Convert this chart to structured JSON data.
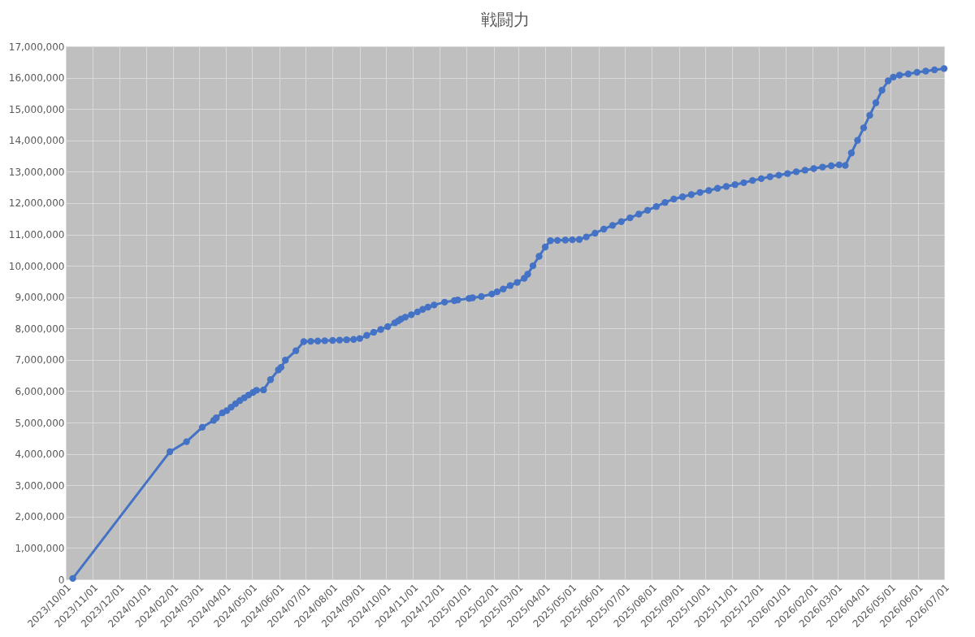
{
  "chart_data": {
    "type": "line",
    "title": "戦闘力",
    "x": [
      "2023-10-09",
      "2024-01-28",
      "2024-02-16",
      "2024-03-05",
      "2024-03-18",
      "2024-03-21",
      "2024-03-28",
      "2024-04-02",
      "2024-04-07",
      "2024-04-12",
      "2024-04-17",
      "2024-04-22",
      "2024-04-27",
      "2024-05-02",
      "2024-05-06",
      "2024-05-14",
      "2024-05-22",
      "2024-05-31",
      "2024-06-03",
      "2024-06-08",
      "2024-06-20",
      "2024-06-29",
      "2024-07-07",
      "2024-07-15",
      "2024-07-23",
      "2024-08-01",
      "2024-08-09",
      "2024-08-17",
      "2024-08-25",
      "2024-09-01",
      "2024-09-09",
      "2024-09-17",
      "2024-09-25",
      "2024-10-03",
      "2024-10-11",
      "2024-10-15",
      "2024-10-18",
      "2024-10-23",
      "2024-10-30",
      "2024-11-06",
      "2024-11-12",
      "2024-11-18",
      "2024-11-25",
      "2024-12-07",
      "2024-12-18",
      "2024-12-22",
      "2025-01-04",
      "2025-01-08",
      "2025-01-18",
      "2025-01-30",
      "2025-02-05",
      "2025-02-12",
      "2025-02-20",
      "2025-02-28",
      "2025-03-08",
      "2025-03-12",
      "2025-03-18",
      "2025-03-25",
      "2025-04-01",
      "2025-04-07",
      "2025-04-15",
      "2025-04-24",
      "2025-05-02",
      "2025-05-10",
      "2025-05-18",
      "2025-05-28",
      "2025-06-07",
      "2025-06-17",
      "2025-06-27",
      "2025-07-07",
      "2025-07-17",
      "2025-07-27",
      "2025-08-06",
      "2025-08-16",
      "2025-08-26",
      "2025-09-05",
      "2025-09-15",
      "2025-09-25",
      "2025-10-05",
      "2025-10-15",
      "2025-10-25",
      "2025-11-04",
      "2025-11-14",
      "2025-11-24",
      "2025-12-04",
      "2025-12-14",
      "2025-12-24",
      "2026-01-03",
      "2026-01-13",
      "2026-01-23",
      "2026-02-02",
      "2026-02-12",
      "2026-02-22",
      "2026-03-03",
      "2026-03-10",
      "2026-03-17",
      "2026-03-24",
      "2026-03-31",
      "2026-04-07",
      "2026-04-14",
      "2026-04-21",
      "2026-04-28",
      "2026-05-04",
      "2026-05-11",
      "2026-05-21",
      "2026-05-31",
      "2026-06-10",
      "2026-06-20",
      "2026-07-01"
    ],
    "series": [
      {
        "color": "#4472c4",
        "values": [
          30000,
          4070000,
          4390000,
          4850000,
          5070000,
          5150000,
          5310000,
          5380000,
          5490000,
          5600000,
          5700000,
          5790000,
          5880000,
          5960000,
          6030000,
          6040000,
          6370000,
          6680000,
          6760000,
          6990000,
          7290000,
          7580000,
          7590000,
          7600000,
          7610000,
          7620000,
          7630000,
          7640000,
          7650000,
          7680000,
          7780000,
          7880000,
          7970000,
          8060000,
          8180000,
          8240000,
          8300000,
          8360000,
          8440000,
          8530000,
          8610000,
          8680000,
          8750000,
          8840000,
          8890000,
          8910000,
          8960000,
          8980000,
          9020000,
          9100000,
          9170000,
          9260000,
          9370000,
          9470000,
          9600000,
          9730000,
          10000000,
          10300000,
          10600000,
          10800000,
          10810000,
          10820000,
          10830000,
          10840000,
          10920000,
          11040000,
          11170000,
          11290000,
          11410000,
          11530000,
          11650000,
          11770000,
          11890000,
          12020000,
          12130000,
          12200000,
          12270000,
          12340000,
          12400000,
          12470000,
          12530000,
          12590000,
          12650000,
          12720000,
          12780000,
          12840000,
          12890000,
          12940000,
          13000000,
          13050000,
          13100000,
          13150000,
          13190000,
          13220000,
          13200000,
          13600000,
          14000000,
          14400000,
          14800000,
          15200000,
          15600000,
          15900000,
          16020000,
          16080000,
          16120000,
          16170000,
          16210000,
          16250000,
          16290000
        ]
      }
    ],
    "xlim": [
      "2023-10-01",
      "2026-07-01"
    ],
    "xticks": [
      {
        "value": "2023-10-01",
        "label": "2023/10/01"
      },
      {
        "value": "2023-11-01",
        "label": "2023/11/01"
      },
      {
        "value": "2023-12-01",
        "label": "2023/12/01"
      },
      {
        "value": "2024-01-01",
        "label": "2024/01/01"
      },
      {
        "value": "2024-02-01",
        "label": "2024/02/01"
      },
      {
        "value": "2024-03-01",
        "label": "2024/03/01"
      },
      {
        "value": "2024-04-01",
        "label": "2024/04/01"
      },
      {
        "value": "2024-05-01",
        "label": "2024/05/01"
      },
      {
        "value": "2024-06-01",
        "label": "2024/06/01"
      },
      {
        "value": "2024-07-01",
        "label": "2024/07/01"
      },
      {
        "value": "2024-08-01",
        "label": "2024/08/01"
      },
      {
        "value": "2024-09-01",
        "label": "2024/09/01"
      },
      {
        "value": "2024-10-01",
        "label": "2024/10/01"
      },
      {
        "value": "2024-11-01",
        "label": "2024/11/01"
      },
      {
        "value": "2024-12-01",
        "label": "2024/12/01"
      },
      {
        "value": "2025-01-01",
        "label": "2025/01/01"
      },
      {
        "value": "2025-02-01",
        "label": "2025/02/01"
      },
      {
        "value": "2025-03-01",
        "label": "2025/03/01"
      },
      {
        "value": "2025-04-01",
        "label": "2025/04/01"
      },
      {
        "value": "2025-05-01",
        "label": "2025/05/01"
      },
      {
        "value": "2025-06-01",
        "label": "2025/06/01"
      },
      {
        "value": "2025-07-01",
        "label": "2025/07/01"
      },
      {
        "value": "2025-08-01",
        "label": "2025/08/01"
      },
      {
        "value": "2025-09-01",
        "label": "2025/09/01"
      },
      {
        "value": "2025-10-01",
        "label": "2025/10/01"
      },
      {
        "value": "2025-11-01",
        "label": "2025/11/01"
      },
      {
        "value": "2025-12-01",
        "label": "2025/12/01"
      },
      {
        "value": "2026-01-01",
        "label": "2026/01/01"
      },
      {
        "value": "2026-02-01",
        "label": "2026/02/01"
      },
      {
        "value": "2026-03-01",
        "label": "2026/03/01"
      },
      {
        "value": "2026-04-01",
        "label": "2026/04/01"
      },
      {
        "value": "2026-05-01",
        "label": "2026/05/01"
      },
      {
        "value": "2026-06-01",
        "label": "2026/06/01"
      },
      {
        "value": "2026-07-01",
        "label": "2026/07/01"
      }
    ],
    "ylim": [
      0,
      17000000
    ],
    "yticks": [
      {
        "value": 0,
        "label": "0"
      },
      {
        "value": 1000000,
        "label": "1,000,000"
      },
      {
        "value": 2000000,
        "label": "2,000,000"
      },
      {
        "value": 3000000,
        "label": "3,000,000"
      },
      {
        "value": 4000000,
        "label": "4,000,000"
      },
      {
        "value": 5000000,
        "label": "5,000,000"
      },
      {
        "value": 6000000,
        "label": "6,000,000"
      },
      {
        "value": 7000000,
        "label": "7,000,000"
      },
      {
        "value": 8000000,
        "label": "8,000,000"
      },
      {
        "value": 9000000,
        "label": "9,000,000"
      },
      {
        "value": 10000000,
        "label": "10,000,000"
      },
      {
        "value": 11000000,
        "label": "11,000,000"
      },
      {
        "value": 12000000,
        "label": "12,000,000"
      },
      {
        "value": 13000000,
        "label": "13,000,000"
      },
      {
        "value": 14000000,
        "label": "14,000,000"
      },
      {
        "value": 15000000,
        "label": "15,000,000"
      },
      {
        "value": 16000000,
        "label": "16,000,000"
      },
      {
        "value": 17000000,
        "label": "17,000,000"
      }
    ],
    "grid": true,
    "marker": "circle",
    "line_style": "solid"
  }
}
